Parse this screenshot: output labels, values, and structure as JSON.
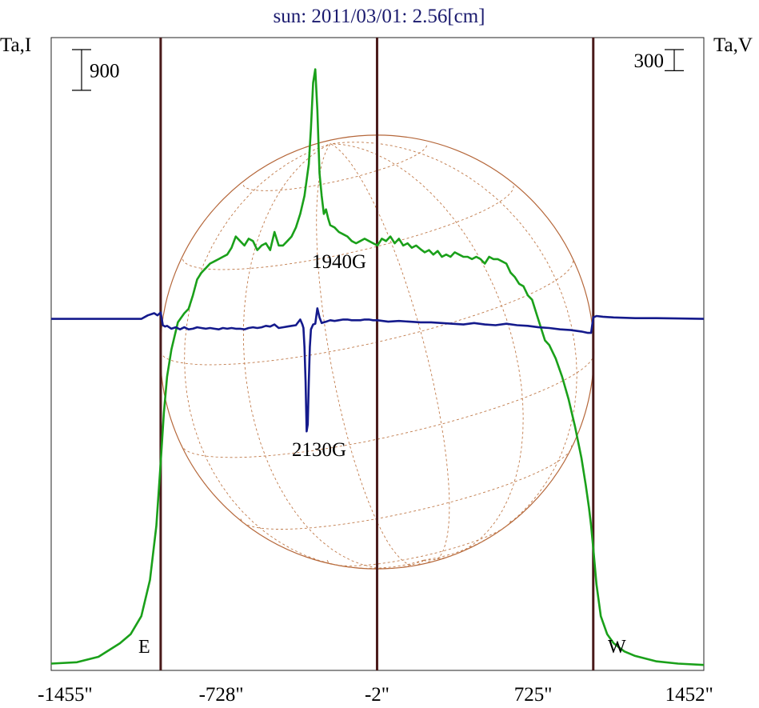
{
  "chart_data": {
    "type": "line",
    "title": "sun: 2011/03/01: 2.56[cm]",
    "left_axis_label": "Ta,I",
    "right_axis_label": "Ta,V",
    "xlim": [
      -1520,
      1520
    ],
    "x_ticks": [
      {
        "value": -1455,
        "label": "-1455\""
      },
      {
        "value": -728,
        "label": "-728\""
      },
      {
        "value": -2,
        "label": "-2\""
      },
      {
        "value": 725,
        "label": "725\""
      },
      {
        "value": 1452,
        "label": "1452\""
      }
    ],
    "vertical_markers": [
      -1010,
      -2,
      1005
    ],
    "limb_labels": {
      "east": "E",
      "west": "W"
    },
    "scale_bars": [
      {
        "axis": "I",
        "value": 900,
        "label": "900"
      },
      {
        "axis": "V",
        "value": 300,
        "label": "300"
      }
    ],
    "annotations": [
      {
        "text": "1940G",
        "x": -300
      },
      {
        "text": "2130G",
        "x": -330
      }
    ],
    "disk": {
      "radius_arcsec": 1010,
      "grid_lines": 7
    },
    "series": [
      {
        "name": "I",
        "color": "#1aa01a",
        "ylim": [
          0,
          14000
        ],
        "x": [
          -1520,
          -1400,
          -1300,
          -1200,
          -1150,
          -1100,
          -1060,
          -1030,
          -1010,
          -995,
          -980,
          -960,
          -930,
          -900,
          -880,
          -860,
          -840,
          -820,
          -800,
          -780,
          -760,
          -740,
          -720,
          -700,
          -680,
          -660,
          -640,
          -620,
          -600,
          -580,
          -560,
          -540,
          -520,
          -500,
          -480,
          -460,
          -440,
          -420,
          -400,
          -380,
          -360,
          -340,
          -320,
          -310,
          -300,
          -290,
          -280,
          -270,
          -260,
          -250,
          -240,
          -230,
          -220,
          -200,
          -180,
          -160,
          -140,
          -120,
          -100,
          -80,
          -60,
          -40,
          -20,
          0,
          20,
          40,
          60,
          80,
          100,
          120,
          140,
          160,
          180,
          200,
          220,
          240,
          260,
          280,
          300,
          320,
          340,
          360,
          380,
          400,
          420,
          440,
          460,
          480,
          500,
          520,
          540,
          560,
          580,
          600,
          620,
          640,
          660,
          680,
          700,
          720,
          740,
          760,
          780,
          800,
          830,
          860,
          890,
          920,
          950,
          970,
          985,
          995,
          1005,
          1020,
          1040,
          1070,
          1100,
          1150,
          1200,
          1300,
          1400,
          1520
        ],
        "values": [
          150,
          180,
          300,
          600,
          800,
          1200,
          2000,
          3200,
          4600,
          5700,
          6500,
          7100,
          7700,
          7900,
          8000,
          8300,
          8650,
          8800,
          8900,
          9000,
          9050,
          9100,
          9150,
          9200,
          9350,
          9600,
          9500,
          9400,
          9550,
          9500,
          9300,
          9400,
          9450,
          9300,
          9700,
          9400,
          9400,
          9500,
          9600,
          9800,
          10100,
          10500,
          11200,
          12000,
          13000,
          13300,
          12400,
          11000,
          10500,
          10100,
          10200,
          10000,
          9850,
          9800,
          9700,
          9650,
          9600,
          9500,
          9450,
          9500,
          9550,
          9500,
          9450,
          9400,
          9550,
          9500,
          9600,
          9450,
          9550,
          9400,
          9450,
          9350,
          9400,
          9320,
          9250,
          9300,
          9200,
          9280,
          9150,
          9200,
          9150,
          9250,
          9200,
          9150,
          9150,
          9100,
          9150,
          9100,
          9000,
          9150,
          9100,
          9100,
          9050,
          9000,
          8800,
          8700,
          8550,
          8500,
          8300,
          8200,
          7900,
          7600,
          7300,
          7200,
          6900,
          6500,
          6000,
          5400,
          4700,
          4100,
          3600,
          3200,
          2700,
          1900,
          1200,
          800,
          600,
          420,
          320,
          200,
          150,
          120
        ]
      },
      {
        "name": "V",
        "color": "#141a8c",
        "ylim": [
          -5000,
          4000
        ],
        "x": [
          -1520,
          -1300,
          -1100,
          -1070,
          -1040,
          -1025,
          -1010,
          -1000,
          -990,
          -980,
          -960,
          -940,
          -920,
          -900,
          -880,
          -860,
          -840,
          -820,
          -800,
          -780,
          -760,
          -740,
          -720,
          -700,
          -680,
          -660,
          -640,
          -620,
          -600,
          -580,
          -560,
          -540,
          -520,
          -500,
          -480,
          -460,
          -440,
          -420,
          -400,
          -380,
          -370,
          -360,
          -350,
          -345,
          -340,
          -335,
          -330,
          -325,
          -320,
          -315,
          -310,
          -300,
          -290,
          -280,
          -270,
          -260,
          -250,
          -240,
          -230,
          -220,
          -200,
          -180,
          -160,
          -140,
          -120,
          -100,
          -80,
          -60,
          -40,
          -20,
          0,
          50,
          100,
          150,
          200,
          250,
          300,
          350,
          400,
          450,
          500,
          550,
          600,
          650,
          700,
          750,
          800,
          850,
          900,
          950,
          980,
          995,
          1005,
          1020,
          1050,
          1100,
          1200,
          1300,
          1400,
          1520
        ],
        "values": [
          0,
          0,
          0,
          50,
          80,
          50,
          90,
          -90,
          -110,
          -100,
          -140,
          -120,
          -150,
          -120,
          -150,
          -140,
          -120,
          -130,
          -140,
          -130,
          -140,
          -150,
          -130,
          -140,
          -130,
          -140,
          -140,
          -150,
          -130,
          -120,
          -130,
          -120,
          -100,
          -110,
          -80,
          -130,
          -120,
          -110,
          -100,
          -90,
          -50,
          -10,
          -80,
          -130,
          -400,
          -900,
          -1600,
          -1500,
          -900,
          -400,
          -150,
          -80,
          -70,
          150,
          20,
          -60,
          -50,
          -40,
          -30,
          -20,
          -30,
          -20,
          -10,
          -10,
          -20,
          -20,
          -20,
          -10,
          -10,
          -20,
          -20,
          -40,
          -30,
          -40,
          -50,
          -50,
          -60,
          -70,
          -80,
          -60,
          -80,
          -90,
          -70,
          -90,
          -100,
          -120,
          -130,
          -150,
          -160,
          -180,
          -200,
          -200,
          20,
          40,
          30,
          20,
          10,
          10,
          5,
          0
        ]
      }
    ]
  }
}
